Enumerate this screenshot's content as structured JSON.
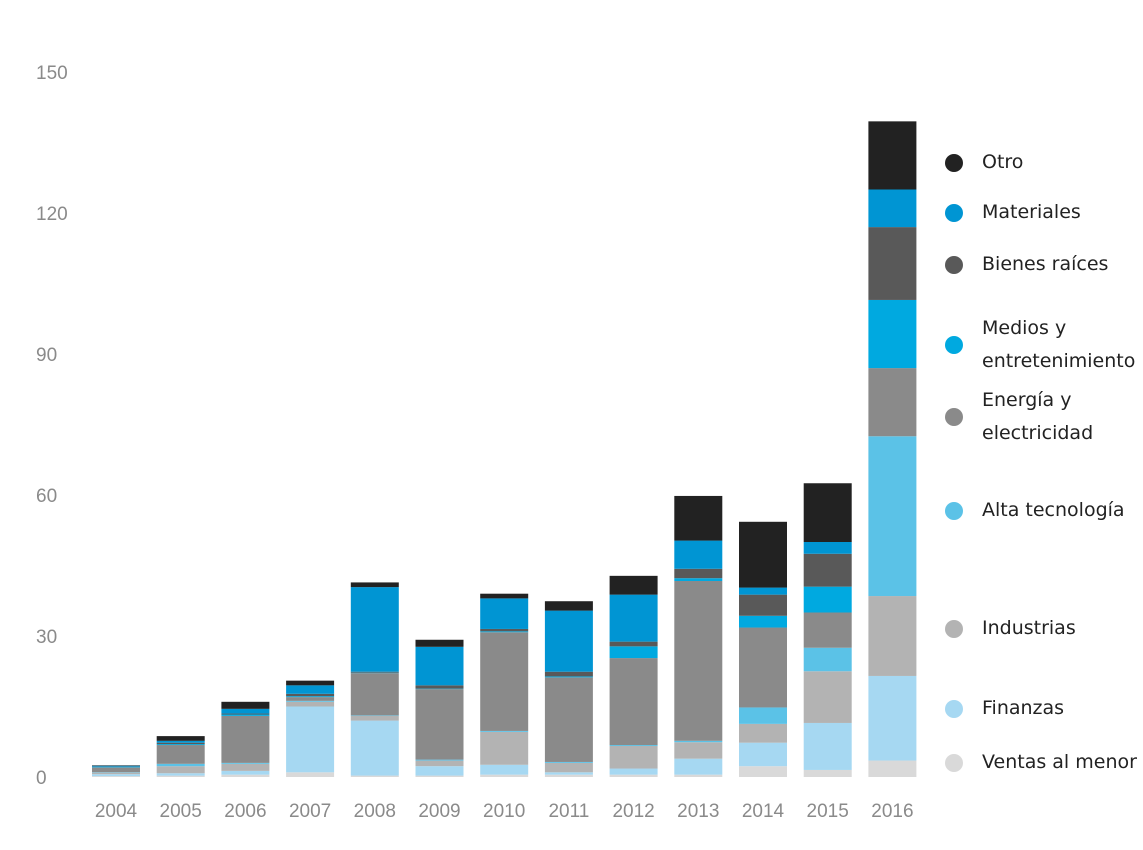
{
  "chart_data": {
    "type": "bar",
    "stacked": true,
    "title": "",
    "xlabel": "",
    "ylabel": "",
    "ylim": [
      0,
      150
    ],
    "yticks": [
      0,
      30,
      60,
      90,
      120,
      150
    ],
    "grid": false,
    "legend_position": "right",
    "categories": [
      "2004",
      "2005",
      "2006",
      "2007",
      "2008",
      "2009",
      "2010",
      "2011",
      "2012",
      "2013",
      "2014",
      "2015",
      "2016"
    ],
    "series": [
      {
        "name": "Ventas al menor",
        "color": "#d9d9d9",
        "values": [
          0.2,
          0.3,
          0.5,
          1,
          0.3,
          0.3,
          0.5,
          0.5,
          0.5,
          0.5,
          2.3,
          1.5,
          3.5
        ]
      },
      {
        "name": "Finanzas",
        "color": "#a6d8f2",
        "values": [
          0.4,
          0.5,
          0.8,
          14,
          11.7,
          2,
          2.1,
          0.5,
          1.3,
          3.4,
          5,
          10,
          18
        ]
      },
      {
        "name": "Industrias",
        "color": "#b3b3b3",
        "values": [
          0.3,
          1.5,
          1.5,
          1,
          1,
          1.2,
          7,
          2,
          4.8,
          3.5,
          4,
          11,
          17
        ]
      },
      {
        "name": "Alta tecnología",
        "color": "#5bc2e7",
        "values": [
          0.1,
          0.5,
          0.2,
          0.2,
          0.1,
          0.2,
          0.2,
          0.2,
          0.2,
          0.3,
          3.5,
          5,
          34
        ]
      },
      {
        "name": "Energía y electricidad",
        "color": "#8a8a8a",
        "values": [
          1,
          4,
          10,
          0.8,
          9,
          15,
          21,
          18,
          18.5,
          34,
          17,
          7.5,
          14.5
        ]
      },
      {
        "name": "Medios y entretenimiento",
        "color": "#00a9e0",
        "values": [
          0.1,
          0.2,
          0.3,
          0.2,
          0.1,
          0.1,
          0.2,
          0.2,
          2.5,
          0.6,
          2.5,
          5.5,
          14.5
        ]
      },
      {
        "name": "Bienes raíces",
        "color": "#595959",
        "values": [
          0.1,
          0.3,
          0.2,
          0.5,
          0.2,
          0.7,
          0.5,
          1,
          1,
          2,
          4.5,
          7,
          15.5
        ]
      },
      {
        "name": "Materiales",
        "color": "#0095d3",
        "values": [
          0.2,
          0.4,
          1,
          1.8,
          18,
          8.2,
          6.5,
          13,
          10,
          6,
          1.5,
          2.5,
          8
        ]
      },
      {
        "name": "Otro",
        "color": "#222222",
        "values": [
          0.1,
          1,
          1.5,
          1,
          1,
          1.5,
          1,
          2,
          4,
          9.5,
          14,
          12.5,
          14.5
        ]
      }
    ]
  }
}
